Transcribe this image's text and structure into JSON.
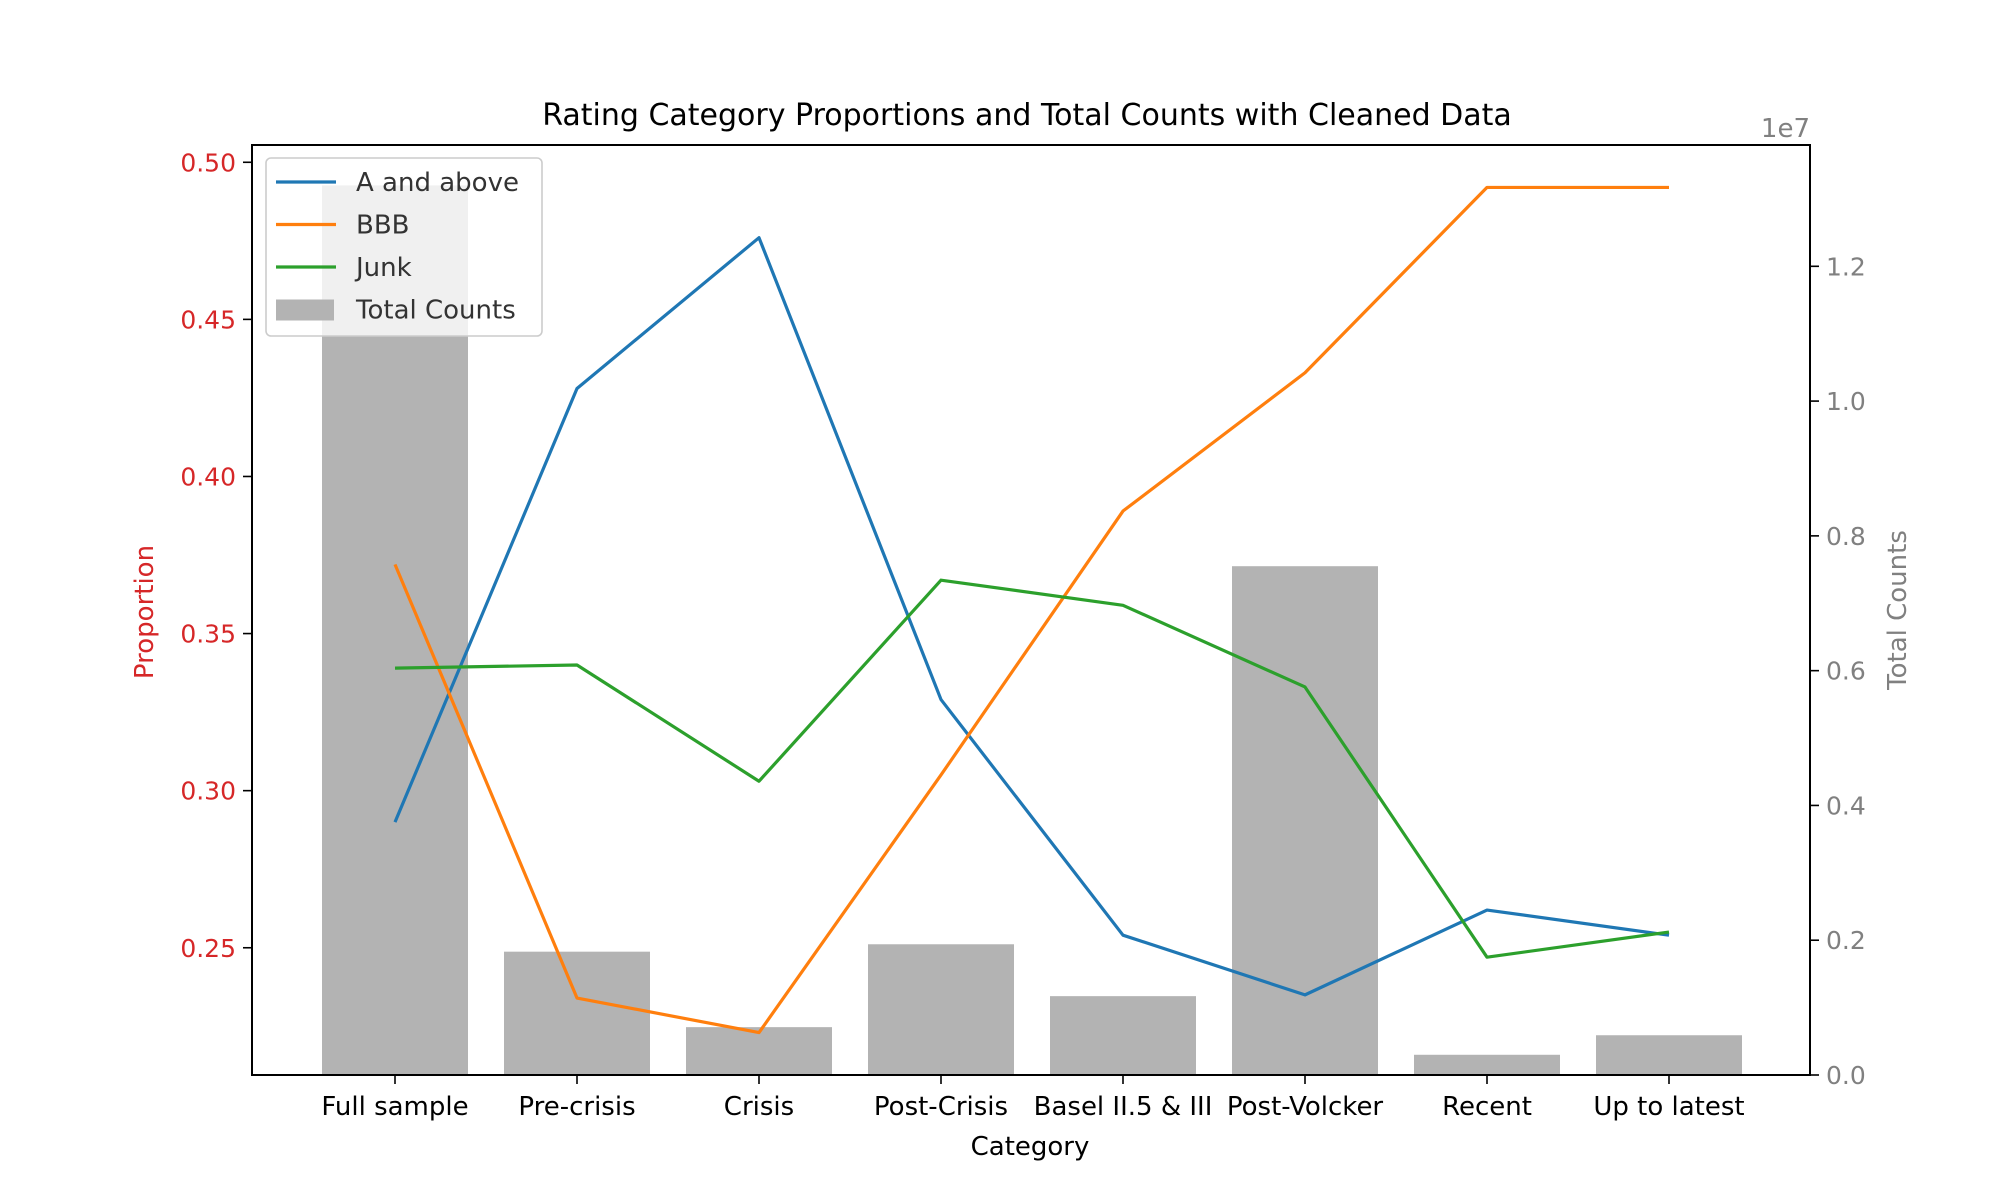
{
  "chart_data": {
    "type": "bar+line",
    "title": "Rating Category Proportions and Total Counts with Cleaned Data",
    "xlabel": "Category",
    "ylabel_left": "Proportion",
    "ylabel_right": "Total Counts",
    "right_axis_multiplier": "1e7",
    "categories": [
      "Full sample",
      "Pre-crisis",
      "Crisis",
      "Post-Crisis",
      "Basel II.5 & III",
      "Post-Volcker",
      "Recent",
      "Up to latest"
    ],
    "ylim_left": [
      0.2095,
      0.5055
    ],
    "ylim_right": [
      0,
      13800000
    ],
    "yticks_left": [
      "0.25",
      "0.30",
      "0.35",
      "0.40",
      "0.45",
      "0.50"
    ],
    "yticks_left_values": [
      0.25,
      0.3,
      0.35,
      0.4,
      0.45,
      0.5
    ],
    "yticks_right": [
      "0.0",
      "0.2",
      "0.4",
      "0.6",
      "0.8",
      "1.0",
      "1.2"
    ],
    "yticks_right_values": [
      0,
      2000000,
      4000000,
      6000000,
      8000000,
      10000000,
      12000000
    ],
    "bars": {
      "name": "Total Counts",
      "color": "#b3b3b3",
      "values": [
        13200000,
        1830000,
        710000,
        1940000,
        1170000,
        7550000,
        300000,
        590000
      ]
    },
    "series": [
      {
        "name": "A and above",
        "color": "#1f77b4",
        "values": [
          0.29,
          0.428,
          0.476,
          0.329,
          0.254,
          0.235,
          0.262,
          0.254
        ]
      },
      {
        "name": "BBB",
        "color": "#ff7f0e",
        "values": [
          0.372,
          0.234,
          0.223,
          0.305,
          0.389,
          0.433,
          0.492,
          0.492
        ]
      },
      {
        "name": "Junk",
        "color": "#2ca02c",
        "values": [
          0.339,
          0.34,
          0.303,
          0.367,
          0.359,
          0.333,
          0.247,
          0.255
        ]
      }
    ],
    "legend_position": "top-left",
    "left_axis_color": "#d62728",
    "right_axis_color": "#808080"
  }
}
